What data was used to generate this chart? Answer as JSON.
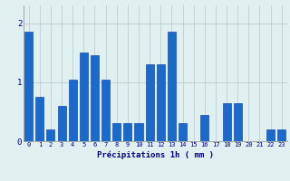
{
  "categories": [
    0,
    1,
    2,
    3,
    4,
    5,
    6,
    7,
    8,
    9,
    10,
    11,
    12,
    13,
    14,
    15,
    16,
    17,
    18,
    19,
    20,
    21,
    22,
    23
  ],
  "values": [
    1.85,
    0.75,
    0.2,
    0.6,
    1.05,
    1.5,
    1.45,
    1.05,
    0.3,
    0.3,
    0.3,
    1.3,
    1.3,
    1.85,
    0.3,
    0.0,
    0.45,
    0.0,
    0.65,
    0.65,
    0.0,
    0.0,
    0.2,
    0.2
  ],
  "bar_color": "#1a6acc",
  "bar_edge_color": "#0033aa",
  "background_color": "#e0f0f0",
  "grid_color": "#b8c8c8",
  "ylabel_ticks": [
    0,
    1,
    2
  ],
  "ylim": [
    0,
    2.3
  ],
  "xlim": [
    -0.5,
    23.5
  ],
  "xlabel": "Précipitations 1h ( mm )",
  "xlabel_color": "#000080",
  "tick_color": "#000080",
  "tick_fontsize": 5,
  "xlabel_fontsize": 6.5
}
